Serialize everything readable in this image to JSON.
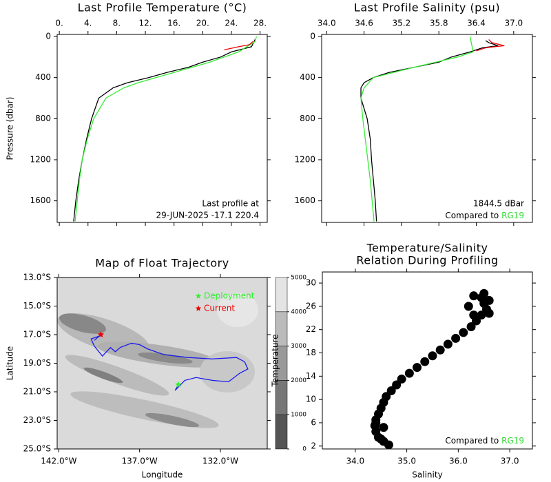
{
  "chart_data": [
    {
      "type": "profile",
      "title": "Last Profile Temperature (°C)",
      "ylabel": "Pressure (dbar)",
      "xlim": [
        -0.3,
        29
      ],
      "ylim": [
        1810,
        -20
      ],
      "xticks": [
        {
          "value": 0,
          "label": "0."
        },
        {
          "value": 4,
          "label": "4."
        },
        {
          "value": 8,
          "label": "8."
        },
        {
          "value": 12,
          "label": "12."
        },
        {
          "value": 16,
          "label": "16."
        },
        {
          "value": 20,
          "label": "20."
        },
        {
          "value": 24,
          "label": "24."
        },
        {
          "value": 28,
          "label": "28."
        }
      ],
      "yticks": [
        0,
        400,
        800,
        1200,
        1600
      ],
      "series": [
        {
          "color": "#000000",
          "x": [
            27.3,
            26.8,
            24,
            22.5,
            20,
            18,
            15,
            12.5,
            9.5,
            7.5,
            5.5,
            4.5,
            3.8,
            3.2,
            2.7,
            2.3,
            2.0
          ],
          "y": [
            30,
            100,
            150,
            200,
            250,
            300,
            350,
            400,
            450,
            500,
            600,
            800,
            1000,
            1200,
            1400,
            1600,
            1800
          ]
        },
        {
          "color": "#33ee33",
          "x": [
            27.5,
            27.3,
            25,
            21,
            16,
            13.5,
            11,
            9,
            6.5,
            4.8,
            3.9,
            3.2,
            2.8,
            2.5,
            2.2
          ],
          "y": [
            0,
            50,
            150,
            250,
            350,
            400,
            450,
            500,
            600,
            800,
            1000,
            1200,
            1400,
            1600,
            1800
          ]
        },
        {
          "color": "#ee0000",
          "x": [
            27,
            26.5,
            25,
            23
          ],
          "y": [
            50,
            80,
            100,
            130
          ]
        }
      ],
      "annotations": [
        "Last profile at",
        "29-JUN-2025   -17.1 220.4"
      ]
    },
    {
      "type": "profile",
      "title": "Last Profile Salinity (psu)",
      "xlim": [
        33.92,
        37.3
      ],
      "ylim": [
        1810,
        -20
      ],
      "xticks": [
        {
          "value": 34,
          "label": "34.0"
        },
        34.6,
        35.2,
        35.8,
        36.4,
        {
          "value": 37,
          "label": "37.0"
        }
      ],
      "yticks": [
        0,
        400,
        800,
        1200,
        1600
      ],
      "series": [
        {
          "color": "#000000",
          "x": [
            36.55,
            36.6,
            36.75,
            36.5,
            36.3,
            36.0,
            35.8,
            35.4,
            35.0,
            34.75,
            34.6,
            34.55,
            34.55,
            34.6,
            34.65,
            34.7,
            34.72,
            34.75,
            34.78,
            34.8
          ],
          "y": [
            40,
            60,
            90,
            110,
            150,
            200,
            250,
            300,
            350,
            400,
            450,
            500,
            600,
            700,
            800,
            1000,
            1200,
            1400,
            1600,
            1800
          ]
        },
        {
          "color": "#33ee33",
          "x": [
            36.3,
            36.35,
            36.1,
            35.4,
            34.75,
            34.6,
            34.55,
            34.58,
            34.62,
            34.66,
            34.7,
            34.73,
            34.76
          ],
          "y": [
            0,
            150,
            200,
            300,
            400,
            500,
            600,
            800,
            1000,
            1200,
            1400,
            1600,
            1800
          ]
        },
        {
          "color": "#ee0000",
          "x": [
            36.6,
            36.65,
            36.85,
            36.55,
            36.4
          ],
          "y": [
            30,
            60,
            90,
            110,
            140
          ]
        }
      ],
      "annotations": [
        "1844.5 dBar"
      ],
      "compare_label": "Compared to",
      "compare_name": "RG19",
      "compare_color": "#33dd33"
    },
    {
      "type": "map",
      "title": "Map of Float Trajectory",
      "xlabel": "Longitude",
      "ylabel": "Latitude",
      "xlim": [
        -142.1,
        -129.1
      ],
      "ylim": [
        -25,
        -13
      ],
      "xticks": [
        {
          "value": -142,
          "label": "142.0°W"
        },
        {
          "value": -137,
          "label": "137.0°W"
        },
        {
          "value": -132,
          "label": "132.0°W"
        }
      ],
      "yticks": [
        {
          "value": -13,
          "label": "13.0°S"
        },
        {
          "value": -15,
          "label": "15.0°S"
        },
        {
          "value": -17,
          "label": "17.0°S"
        },
        {
          "value": -19,
          "label": "19.0°S"
        },
        {
          "value": -21,
          "label": "21.0°S"
        },
        {
          "value": -23,
          "label": "23.0°S"
        },
        {
          "value": -25,
          "label": "25.0°S"
        }
      ],
      "track": {
        "color": "#1a1aee",
        "x": [
          -134.6,
          -134.8,
          -134.2,
          -133.5,
          -132.5,
          -131.5,
          -130.8,
          -130.3,
          -130.5,
          -131,
          -132.5,
          -134,
          -135.5,
          -136.5,
          -137,
          -137.5,
          -138.2,
          -138.5,
          -138.8,
          -139.3,
          -139.8,
          -140,
          -139.5,
          -139.8,
          -139.4
        ],
        "y": [
          -20.5,
          -20.9,
          -20.2,
          -20.0,
          -20.2,
          -20.3,
          -19.7,
          -19.4,
          -18.9,
          -18.6,
          -18.7,
          -18.6,
          -18.4,
          -18.0,
          -17.7,
          -17.6,
          -17.9,
          -18.2,
          -17.9,
          -18.5,
          -17.8,
          -17.3,
          -17.1,
          -17.4,
          -17.0
        ]
      },
      "markers": [
        {
          "name": "Deployment",
          "color": "#33ee33",
          "x": -134.6,
          "y": -20.5
        },
        {
          "name": "Current",
          "color": "#ee0000",
          "x": -139.4,
          "y": -17.0
        }
      ],
      "colorbar_ticks": [
        0,
        1000,
        2000,
        3000,
        4000,
        5000
      ],
      "colorbar_colors": [
        "#555555",
        "#777777",
        "#999999",
        "#bbbbbb",
        "#e4e4e4"
      ]
    },
    {
      "type": "scatter",
      "title": [
        "Temperature/Salinity",
        "Relation During Profiling"
      ],
      "xlabel": "Salinity",
      "ylabel": "Temperature",
      "xlim": [
        33.36,
        37.44
      ],
      "ylim": [
        1.5,
        31.9
      ],
      "xticks": [
        {
          "value": 34,
          "label": "34.0"
        },
        {
          "value": 35,
          "label": "35.0"
        },
        {
          "value": 36,
          "label": "36.0"
        },
        {
          "value": 37,
          "label": "37.0"
        }
      ],
      "yticks": [
        2,
        6,
        10,
        14,
        18,
        22,
        26,
        30
      ],
      "color": "#000000",
      "x": [
        34.65,
        34.55,
        34.45,
        34.4,
        34.38,
        34.4,
        34.45,
        34.5,
        34.55,
        34.6,
        34.7,
        34.8,
        34.9,
        35.05,
        35.2,
        35.35,
        35.5,
        35.65,
        35.8,
        35.95,
        36.1,
        36.25,
        36.35,
        36.45,
        36.55,
        36.5,
        36.45,
        36.5,
        36.3,
        36.6,
        36.2,
        36.3,
        34.55,
        34.5,
        34.4,
        36.6
      ],
      "y": [
        2.2,
        2.8,
        3.5,
        4.5,
        5.5,
        6.5,
        7.5,
        8.5,
        9.5,
        10.5,
        11.5,
        12.5,
        13.5,
        14.5,
        15.5,
        16.5,
        17.5,
        18.5,
        19.5,
        20.5,
        21.5,
        22.5,
        23.5,
        24.5,
        25.5,
        26.5,
        27.5,
        28.2,
        27.8,
        24.8,
        26,
        24.5,
        5.2,
        3.2,
        6,
        27
      ],
      "compare_label": "Compared to",
      "compare_name": "RG19",
      "compare_color": "#33dd33"
    }
  ]
}
